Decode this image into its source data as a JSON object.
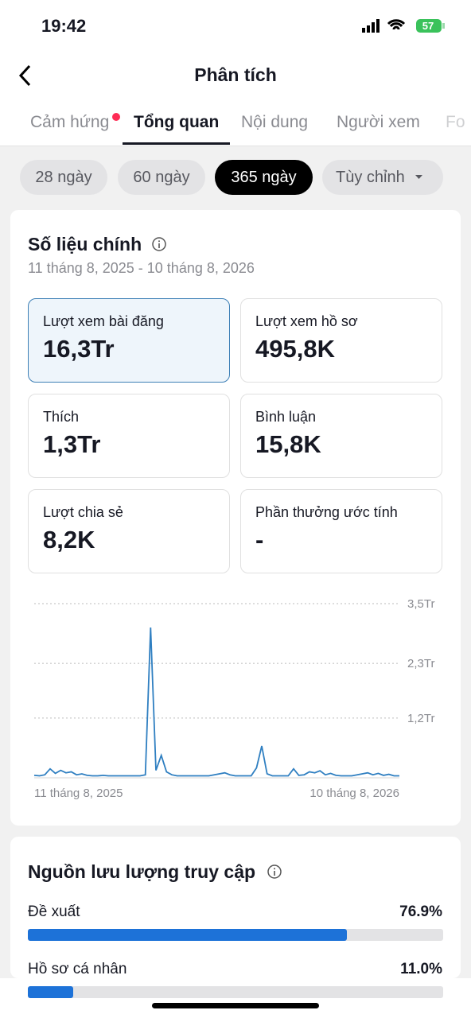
{
  "status": {
    "time": "19:42",
    "battery": "57"
  },
  "header": {
    "title": "Phân tích"
  },
  "tabs": [
    "Cảm hứng",
    "Tổng quan",
    "Nội dung",
    "Người xem",
    "Fo"
  ],
  "periods": [
    "28 ngày",
    "60 ngày",
    "365 ngày",
    "Tùy chỉnh"
  ],
  "metrics": {
    "title": "Số liệu chính",
    "date_range": "11 tháng 8, 2025 - 10 tháng 8, 2026",
    "cards": [
      {
        "label": "Lượt xem bài đăng",
        "value": "16,3Tr"
      },
      {
        "label": "Lượt xem hồ sơ",
        "value": "495,8K"
      },
      {
        "label": "Thích",
        "value": "1,3Tr"
      },
      {
        "label": "Bình luận",
        "value": "15,8K"
      },
      {
        "label": "Lượt chia sẻ",
        "value": "8,2K"
      },
      {
        "label": "Phần thưởng ước tính",
        "value": "-"
      }
    ]
  },
  "chart_data": {
    "type": "line",
    "color": "#2f7fc1",
    "grid": true,
    "ylim": [
      0,
      3500000
    ],
    "yticks": [
      {
        "value": 1200000,
        "label": "1,2Tr"
      },
      {
        "value": 2300000,
        "label": "2,3Tr"
      },
      {
        "value": 3500000,
        "label": "3,5Tr"
      }
    ],
    "x_labels": [
      "11 tháng 8, 2025",
      "10 tháng 8, 2026"
    ],
    "values": [
      50000,
      40000,
      60000,
      180000,
      90000,
      150000,
      100000,
      120000,
      60000,
      80000,
      50000,
      40000,
      40000,
      50000,
      40000,
      40000,
      40000,
      40000,
      40000,
      40000,
      40000,
      60000,
      3020000,
      150000,
      450000,
      120000,
      60000,
      40000,
      40000,
      40000,
      40000,
      40000,
      40000,
      40000,
      60000,
      80000,
      100000,
      60000,
      40000,
      40000,
      40000,
      40000,
      200000,
      640000,
      80000,
      40000,
      40000,
      40000,
      40000,
      180000,
      50000,
      60000,
      120000,
      100000,
      140000,
      60000,
      90000,
      50000,
      40000,
      40000,
      40000,
      60000,
      80000,
      100000,
      60000,
      90000,
      50000,
      70000,
      40000,
      40000
    ]
  },
  "traffic": {
    "title": "Nguồn lưu lượng truy cập",
    "rows": [
      {
        "label": "Đề xuất",
        "value": 76.9,
        "value_label": "76.9%"
      },
      {
        "label": "Hồ sơ cá nhân",
        "value": 11.0,
        "value_label": "11.0%"
      }
    ]
  }
}
